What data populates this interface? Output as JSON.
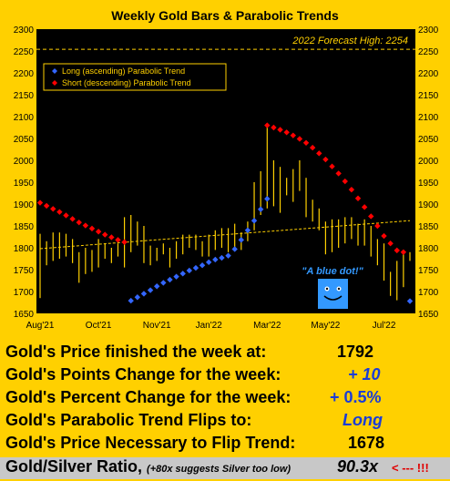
{
  "chart_data": {
    "type": "bar",
    "title": "Weekly Gold Bars & Parabolic Trends",
    "ylim": [
      1650,
      2300
    ],
    "yticks": [
      1650,
      1700,
      1750,
      1800,
      1850,
      1900,
      1950,
      2000,
      2050,
      2100,
      2150,
      2200,
      2250,
      2300
    ],
    "xtick_labels": [
      "Aug'21",
      "Oct'21",
      "Nov'21",
      "Jan'22",
      "Mar'22",
      "May'22",
      "Jul'22"
    ],
    "xtick_weeks": [
      0,
      9,
      18,
      26,
      35,
      44,
      53
    ],
    "forecast": {
      "value": 2254,
      "label": "2022 Forecast High: 2254"
    },
    "regression": {
      "start": 1798,
      "end": 1862
    },
    "legend": {
      "long": "Long (ascending) Parabolic Trend",
      "short": "Short (descending) Parabolic Trend",
      "long_color": "#3366ff",
      "short_color": "#ff0000"
    },
    "annotation": "\"A blue dot!\"",
    "bars": [
      {
        "low": 1685,
        "high": 1832
      },
      {
        "low": 1760,
        "high": 1815
      },
      {
        "low": 1770,
        "high": 1835
      },
      {
        "low": 1775,
        "high": 1835
      },
      {
        "low": 1780,
        "high": 1832
      },
      {
        "low": 1765,
        "high": 1820
      },
      {
        "low": 1720,
        "high": 1790
      },
      {
        "low": 1740,
        "high": 1800
      },
      {
        "low": 1745,
        "high": 1795
      },
      {
        "low": 1755,
        "high": 1820
      },
      {
        "low": 1775,
        "high": 1810
      },
      {
        "low": 1765,
        "high": 1800
      },
      {
        "low": 1780,
        "high": 1810
      },
      {
        "low": 1755,
        "high": 1870
      },
      {
        "low": 1790,
        "high": 1875
      },
      {
        "low": 1805,
        "high": 1860
      },
      {
        "low": 1765,
        "high": 1850
      },
      {
        "low": 1760,
        "high": 1805
      },
      {
        "low": 1770,
        "high": 1800
      },
      {
        "low": 1785,
        "high": 1810
      },
      {
        "low": 1755,
        "high": 1800
      },
      {
        "low": 1775,
        "high": 1815
      },
      {
        "low": 1785,
        "high": 1830
      },
      {
        "low": 1800,
        "high": 1830
      },
      {
        "low": 1795,
        "high": 1830
      },
      {
        "low": 1780,
        "high": 1815
      },
      {
        "low": 1780,
        "high": 1830
      },
      {
        "low": 1795,
        "high": 1840
      },
      {
        "low": 1800,
        "high": 1845
      },
      {
        "low": 1790,
        "high": 1845
      },
      {
        "low": 1800,
        "high": 1855
      },
      {
        "low": 1795,
        "high": 1835
      },
      {
        "low": 1815,
        "high": 1860
      },
      {
        "low": 1840,
        "high": 1950
      },
      {
        "low": 1875,
        "high": 1975
      },
      {
        "low": 1890,
        "high": 2080
      },
      {
        "low": 1895,
        "high": 2000
      },
      {
        "low": 1880,
        "high": 1985
      },
      {
        "low": 1920,
        "high": 1960
      },
      {
        "low": 1905,
        "high": 1980
      },
      {
        "low": 1930,
        "high": 2000
      },
      {
        "low": 1870,
        "high": 1960
      },
      {
        "low": 1860,
        "high": 1910
      },
      {
        "low": 1840,
        "high": 1890
      },
      {
        "low": 1785,
        "high": 1860
      },
      {
        "low": 1790,
        "high": 1865
      },
      {
        "low": 1800,
        "high": 1865
      },
      {
        "low": 1810,
        "high": 1870
      },
      {
        "low": 1820,
        "high": 1870
      },
      {
        "low": 1805,
        "high": 1855
      },
      {
        "low": 1805,
        "high": 1865
      },
      {
        "low": 1780,
        "high": 1850
      },
      {
        "low": 1760,
        "high": 1820
      },
      {
        "low": 1725,
        "high": 1810
      },
      {
        "low": 1690,
        "high": 1745
      },
      {
        "low": 1680,
        "high": 1770
      },
      {
        "low": 1710,
        "high": 1790
      },
      {
        "low": 1770,
        "high": 1790
      }
    ],
    "short_dots": [
      {
        "week": 0,
        "value": 1903
      },
      {
        "week": 1,
        "value": 1896
      },
      {
        "week": 2,
        "value": 1889
      },
      {
        "week": 3,
        "value": 1882
      },
      {
        "week": 4,
        "value": 1874
      },
      {
        "week": 5,
        "value": 1866
      },
      {
        "week": 6,
        "value": 1858
      },
      {
        "week": 7,
        "value": 1851
      },
      {
        "week": 8,
        "value": 1844
      },
      {
        "week": 9,
        "value": 1837
      },
      {
        "week": 10,
        "value": 1830
      },
      {
        "week": 11,
        "value": 1824
      },
      {
        "week": 12,
        "value": 1818
      },
      {
        "week": 13,
        "value": 1813
      },
      {
        "week": 35,
        "value": 2080
      },
      {
        "week": 36,
        "value": 2075
      },
      {
        "week": 37,
        "value": 2070
      },
      {
        "week": 38,
        "value": 2064
      },
      {
        "week": 39,
        "value": 2057
      },
      {
        "week": 40,
        "value": 2049
      },
      {
        "week": 41,
        "value": 2040
      },
      {
        "week": 42,
        "value": 2029
      },
      {
        "week": 43,
        "value": 2016
      },
      {
        "week": 44,
        "value": 2002
      },
      {
        "week": 45,
        "value": 1986
      },
      {
        "week": 46,
        "value": 1970
      },
      {
        "week": 47,
        "value": 1952
      },
      {
        "week": 48,
        "value": 1933
      },
      {
        "week": 49,
        "value": 1913
      },
      {
        "week": 50,
        "value": 1893
      },
      {
        "week": 51,
        "value": 1872
      },
      {
        "week": 52,
        "value": 1850
      },
      {
        "week": 53,
        "value": 1827
      },
      {
        "week": 54,
        "value": 1810
      },
      {
        "week": 55,
        "value": 1794
      },
      {
        "week": 56,
        "value": 1790
      }
    ],
    "long_dots": [
      {
        "week": 14,
        "value": 1679
      },
      {
        "week": 15,
        "value": 1687
      },
      {
        "week": 16,
        "value": 1695
      },
      {
        "week": 17,
        "value": 1703
      },
      {
        "week": 18,
        "value": 1712
      },
      {
        "week": 19,
        "value": 1720
      },
      {
        "week": 20,
        "value": 1727
      },
      {
        "week": 21,
        "value": 1734
      },
      {
        "week": 22,
        "value": 1741
      },
      {
        "week": 23,
        "value": 1748
      },
      {
        "week": 24,
        "value": 1754
      },
      {
        "week": 25,
        "value": 1760
      },
      {
        "week": 26,
        "value": 1767
      },
      {
        "week": 27,
        "value": 1773
      },
      {
        "week": 28,
        "value": 1777
      },
      {
        "week": 29,
        "value": 1782
      },
      {
        "week": 30,
        "value": 1797
      },
      {
        "week": 31,
        "value": 1818
      },
      {
        "week": 32,
        "value": 1840
      },
      {
        "week": 33,
        "value": 1862
      },
      {
        "week": 34,
        "value": 1888
      },
      {
        "week": 35,
        "value": 1912
      },
      {
        "week": 57,
        "value": 1678
      }
    ]
  },
  "stats": {
    "price_label": "Gold's Price finished the week at:",
    "price_value": "1792",
    "points_label": "Gold's Points Change for the week:",
    "points_value": "+ 10",
    "percent_label": "Gold's Percent Change for the week:",
    "percent_value": "+ 0.5%",
    "flip_label": "Gold's Parabolic Trend Flips to:",
    "flip_value": "Long",
    "necessary_label": "Gold's Price Necessary to Flip Trend:",
    "necessary_value": "1678",
    "ratio_label": "Gold/Silver Ratio,",
    "ratio_note": "(+80x suggests Silver too low)",
    "ratio_value": "90.3x",
    "ratio_arrow": "< --- !!!",
    "blue_color": "#1a3cd8",
    "red_color": "#e00000"
  }
}
